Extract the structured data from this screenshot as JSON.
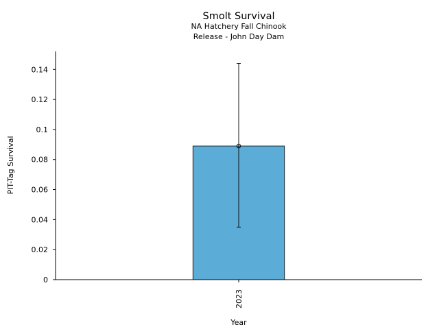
{
  "chart_data": {
    "type": "bar",
    "title": "Smolt Survival",
    "subtitle_lines": [
      "NA Hatchery Fall Chinook",
      "Release - John Day Dam"
    ],
    "xlabel": "Year",
    "ylabel": "PIT-Tag Survival",
    "categories": [
      "2023"
    ],
    "values": [
      0.089
    ],
    "error_low": [
      0.035
    ],
    "error_high": [
      0.144
    ],
    "ylim": [
      0,
      0.152
    ],
    "yticks": [
      0,
      0.02,
      0.04,
      0.06,
      0.08,
      0.1,
      0.12,
      0.14
    ],
    "ytick_labels": [
      "0",
      "0.02",
      "0.04",
      "0.06",
      "0.08",
      "0.1",
      "0.12",
      "0.14"
    ],
    "bar_color": "#5bacd6",
    "grid": false,
    "legend": "none"
  }
}
